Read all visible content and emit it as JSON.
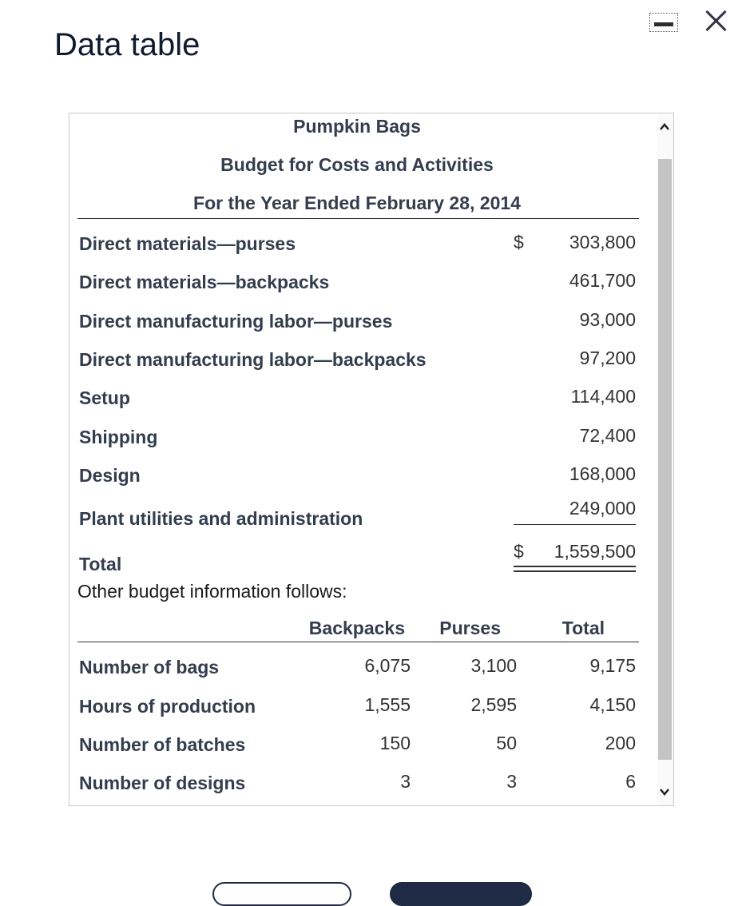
{
  "window": {
    "title": "Data table",
    "minimize_icon": "minimize-icon",
    "close_icon": "close-icon"
  },
  "report": {
    "company": "Pumpkin Bags",
    "subtitle": "Budget for Costs and Activities",
    "period": "For the Year Ended February 28, 2014",
    "currency_symbol": "$",
    "rows": [
      {
        "label": "Direct materials—purses",
        "value": "303,800"
      },
      {
        "label": "Direct materials—backpacks",
        "value": "461,700"
      },
      {
        "label": "Direct manufacturing labor—purses",
        "value": "93,000"
      },
      {
        "label": "Direct manufacturing labor—backpacks",
        "value": "97,200"
      },
      {
        "label": "Setup",
        "value": "114,400"
      },
      {
        "label": "Shipping",
        "value": "72,400"
      },
      {
        "label": "Design",
        "value": "168,000"
      },
      {
        "label": "Plant utilities and administration",
        "value": "249,000"
      }
    ],
    "total": {
      "label": "Total",
      "value": "1,559,500"
    }
  },
  "other": {
    "intro": "Other budget information follows:",
    "headers": [
      "Backpacks",
      "Purses",
      "Total"
    ],
    "rows": [
      {
        "label": "Number of bags",
        "values": [
          "6,075",
          "3,100",
          "9,175"
        ]
      },
      {
        "label": "Hours of production",
        "values": [
          "1,555",
          "2,595",
          "4,150"
        ]
      },
      {
        "label": "Number of batches",
        "values": [
          "150",
          "50",
          "200"
        ]
      },
      {
        "label": "Number of designs",
        "values": [
          "3",
          "3",
          "6"
        ]
      }
    ]
  }
}
